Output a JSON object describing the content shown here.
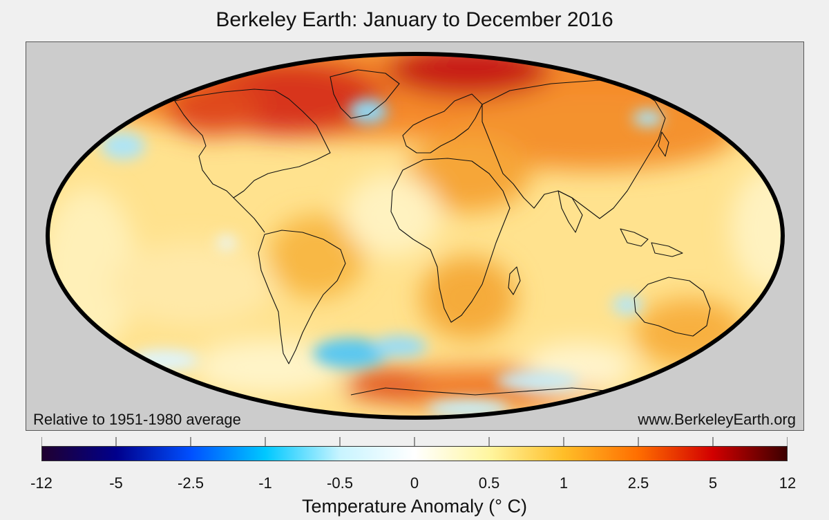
{
  "title": "Berkeley Earth: January to December 2016",
  "note_left": "Relative to 1951-1980 average",
  "note_right": "www.BerkeleyEarth.org",
  "colorbar": {
    "label": "Temperature Anomaly (° C)",
    "ticks": [
      "-12",
      "-5",
      "-2.5",
      "-1",
      "-0.5",
      "0",
      "0.5",
      "1",
      "2.5",
      "5",
      "12"
    ],
    "colors": [
      "#200030",
      "#00008c",
      "#0050ff",
      "#00c8ff",
      "#c8f4ff",
      "#ffffff",
      "#fff6a0",
      "#ffbe28",
      "#ff6e00",
      "#d20000",
      "#3c0000"
    ]
  },
  "map": {
    "projection": "Mollweide",
    "ocean_base_color": "#ffe08a",
    "background_color": "#cccccc"
  }
}
